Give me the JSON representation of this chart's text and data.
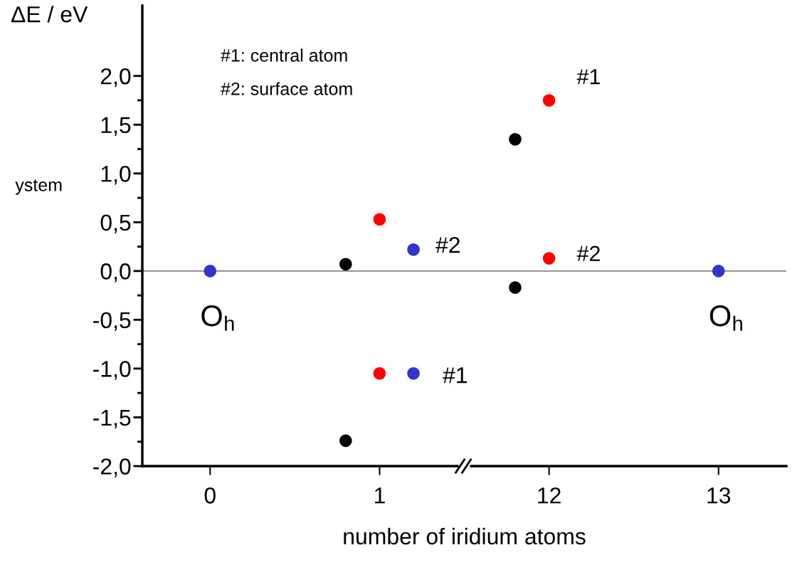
{
  "chart_data": {
    "type": "scatter",
    "xlabel": "number of iridium atoms",
    "ylabel": "ΔE / eV",
    "categories": [
      "0",
      "1",
      "12",
      "13"
    ],
    "ylim": [
      -2.0,
      2.72
    ],
    "yticks": [
      {
        "value": -2.0,
        "label": "-2,0"
      },
      {
        "value": -1.5,
        "label": "-1,5"
      },
      {
        "value": -1.0,
        "label": "-1,0"
      },
      {
        "value": -0.5,
        "label": "-0,5"
      },
      {
        "value": 0.0,
        "label": "0,0"
      },
      {
        "value": 0.5,
        "label": "0,5"
      },
      {
        "value": 1.0,
        "label": "1,0"
      },
      {
        "value": 1.5,
        "label": "1,5"
      },
      {
        "value": 2.0,
        "label": "2,0"
      }
    ],
    "marker": "circle",
    "grid": false,
    "series": [
      {
        "color": "#000000",
        "x": [
          "1",
          "1",
          "12",
          "12"
        ],
        "values": [
          0.07,
          -1.74,
          1.35,
          -0.17
        ]
      },
      {
        "color": "#ff0000",
        "x": [
          "1",
          "1",
          "12",
          "12"
        ],
        "values": [
          0.53,
          -1.05,
          1.75,
          0.13
        ]
      },
      {
        "color": "#3333cc",
        "x": [
          "1",
          "1"
        ],
        "values": [
          0.22,
          -1.05
        ]
      },
      {
        "color": "#3333cc",
        "x": [
          "0",
          "13"
        ],
        "values": [
          0.0,
          0.0
        ]
      }
    ],
    "ref_lines": [
      {
        "axis": "y",
        "value": 0,
        "color": "#555555"
      }
    ],
    "annotations": [
      "#1: central atom",
      "#2: surface atom",
      "ystem",
      "#2",
      "#1",
      {
        "text": "O$_{h}$",
        "x": "0",
        "y": 0.0
      },
      {
        "text": "#1",
        "x": "12",
        "y": 1.75
      },
      {
        "text": "#2",
        "x": "12",
        "y": 0.13
      },
      {
        "text": "O$_{h}$",
        "x": "13",
        "y": 0.0
      }
    ]
  }
}
